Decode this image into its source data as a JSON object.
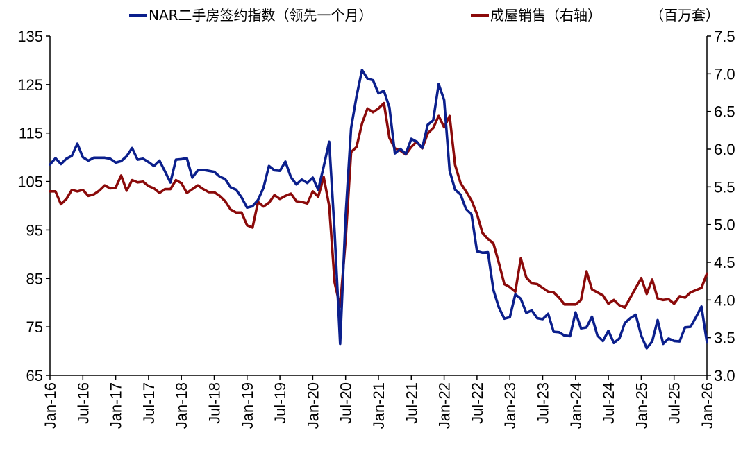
{
  "legend": {
    "series1_label": "NAR二手房签约指数（领先一个月）",
    "series2_label": "成屋销售（右轴）",
    "units_label": "（百万套）"
  },
  "chart_data": {
    "type": "line",
    "left_axis": {
      "ylim": [
        65,
        135
      ],
      "ticks": [
        65,
        75,
        85,
        95,
        105,
        115,
        125,
        135
      ]
    },
    "right_axis": {
      "ylim": [
        3.0,
        7.5
      ],
      "ticks": [
        "3.0",
        "3.5",
        "4.0",
        "4.5",
        "5.0",
        "5.5",
        "6.0",
        "6.5",
        "7.0",
        "7.5"
      ]
    },
    "x_tick_labels": [
      "Jan-16",
      "Jul-16",
      "Jan-17",
      "Jul-17",
      "Jan-18",
      "Jul-18",
      "Jan-19",
      "Jul-19",
      "Jan-20",
      "Jul-20",
      "Jan-21",
      "Jul-21",
      "Jan-22",
      "Jul-22",
      "Jan-23",
      "Jul-23",
      "Jan-24",
      "Jul-24",
      "Jan-25",
      "Jul-25",
      "Jan-26"
    ],
    "start_month": "2016-01",
    "end_month": "2026-01",
    "grid": false,
    "legend_position": "top",
    "series": [
      {
        "name": "NAR二手房签约指数（领先一个月）",
        "axis": "left",
        "color": "#0b1f8c",
        "values": [
          108.5,
          109.8,
          108.6,
          109.7,
          110.3,
          112.8,
          110.0,
          109.3,
          109.9,
          109.9,
          109.9,
          109.7,
          108.9,
          109.2,
          110.2,
          111.9,
          109.5,
          109.7,
          109.0,
          108.2,
          109.3,
          107.1,
          104.8,
          109.5,
          109.6,
          109.8,
          105.8,
          107.3,
          107.4,
          107.2,
          107.0,
          106.0,
          105.5,
          103.8,
          103.3,
          101.7,
          99.6,
          99.9,
          101.2,
          103.7,
          108.2,
          107.3,
          107.2,
          109.1,
          105.9,
          104.4,
          105.4,
          104.7,
          105.8,
          103.3,
          108.1,
          113.2,
          94.4,
          71.5,
          97.8,
          116.0,
          122.6,
          128.0,
          126.2,
          125.9,
          123.2,
          123.7,
          120.3,
          110.8,
          111.7,
          110.7,
          113.8,
          113.2,
          111.9,
          116.7,
          117.6,
          125.1,
          121.8,
          107.2,
          103.3,
          102.3,
          99.3,
          98.2,
          90.6,
          90.3,
          90.4,
          82.6,
          79.0,
          76.7,
          77.0,
          81.7,
          80.8,
          77.9,
          78.4,
          76.8,
          76.6,
          77.7,
          74.0,
          73.9,
          73.2,
          73.1,
          78.0,
          74.7,
          74.9,
          77.1,
          73.2,
          72.1,
          74.2,
          71.7,
          72.6,
          75.8,
          76.8,
          77.5,
          73.2,
          70.6,
          72.0,
          76.4,
          71.5,
          72.6,
          72.1,
          72.0,
          74.9,
          75.0,
          77.0,
          79.2,
          71.8
        ]
      },
      {
        "name": "成屋销售（右轴）",
        "axis": "right",
        "color": "#8b0a0a",
        "values": [
          5.44,
          5.44,
          5.27,
          5.34,
          5.46,
          5.44,
          5.46,
          5.38,
          5.4,
          5.45,
          5.52,
          5.48,
          5.49,
          5.65,
          5.45,
          5.59,
          5.56,
          5.57,
          5.51,
          5.48,
          5.42,
          5.47,
          5.47,
          5.59,
          5.55,
          5.42,
          5.47,
          5.52,
          5.47,
          5.43,
          5.43,
          5.38,
          5.31,
          5.2,
          5.16,
          5.16,
          4.99,
          4.96,
          5.3,
          5.24,
          5.29,
          5.39,
          5.34,
          5.38,
          5.41,
          5.31,
          5.3,
          5.28,
          5.44,
          5.37,
          5.63,
          5.25,
          4.23,
          3.91,
          4.8,
          5.96,
          6.03,
          6.34,
          6.54,
          6.49,
          6.54,
          6.61,
          6.15,
          6.01,
          5.98,
          5.93,
          6.03,
          6.1,
          6.01,
          6.21,
          6.28,
          6.44,
          6.29,
          6.44,
          5.79,
          5.55,
          5.44,
          5.32,
          5.14,
          4.89,
          4.81,
          4.75,
          4.49,
          4.21,
          4.17,
          4.11,
          4.55,
          4.3,
          4.22,
          4.21,
          4.16,
          4.11,
          4.1,
          4.03,
          3.94,
          3.94,
          3.94,
          4.0,
          4.38,
          4.14,
          4.1,
          4.06,
          3.95,
          4.0,
          3.93,
          3.9,
          4.03,
          4.16,
          4.29,
          4.08,
          4.27,
          4.02,
          4.0,
          4.01,
          3.95,
          4.05,
          4.03,
          4.1,
          4.13,
          4.16,
          4.35
        ]
      }
    ]
  }
}
